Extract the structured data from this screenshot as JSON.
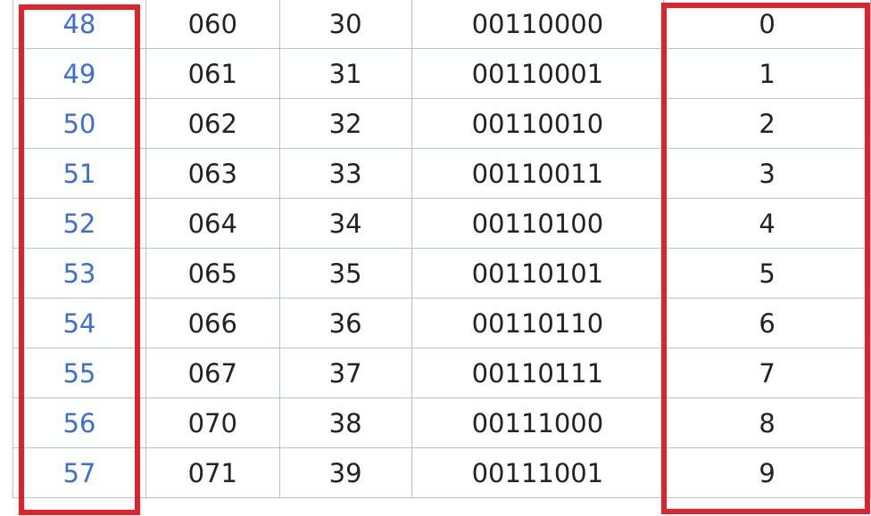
{
  "table": {
    "rows": [
      {
        "dec": "48",
        "oct": "060",
        "hex": "30",
        "bin": "00110000",
        "char": "0"
      },
      {
        "dec": "49",
        "oct": "061",
        "hex": "31",
        "bin": "00110001",
        "char": "1"
      },
      {
        "dec": "50",
        "oct": "062",
        "hex": "32",
        "bin": "00110010",
        "char": "2"
      },
      {
        "dec": "51",
        "oct": "063",
        "hex": "33",
        "bin": "00110011",
        "char": "3"
      },
      {
        "dec": "52",
        "oct": "064",
        "hex": "34",
        "bin": "00110100",
        "char": "4"
      },
      {
        "dec": "53",
        "oct": "065",
        "hex": "35",
        "bin": "00110101",
        "char": "5"
      },
      {
        "dec": "54",
        "oct": "066",
        "hex": "36",
        "bin": "00110110",
        "char": "6"
      },
      {
        "dec": "55",
        "oct": "067",
        "hex": "37",
        "bin": "00110111",
        "char": "7"
      },
      {
        "dec": "56",
        "oct": "070",
        "hex": "38",
        "bin": "00111000",
        "char": "8"
      },
      {
        "dec": "57",
        "oct": "071",
        "hex": "39",
        "bin": "00111001",
        "char": "9"
      }
    ]
  },
  "colors": {
    "link": "#3b6fd6",
    "highlight": "#e3212b",
    "grid": "#b9c3c7",
    "text": "#222222"
  }
}
